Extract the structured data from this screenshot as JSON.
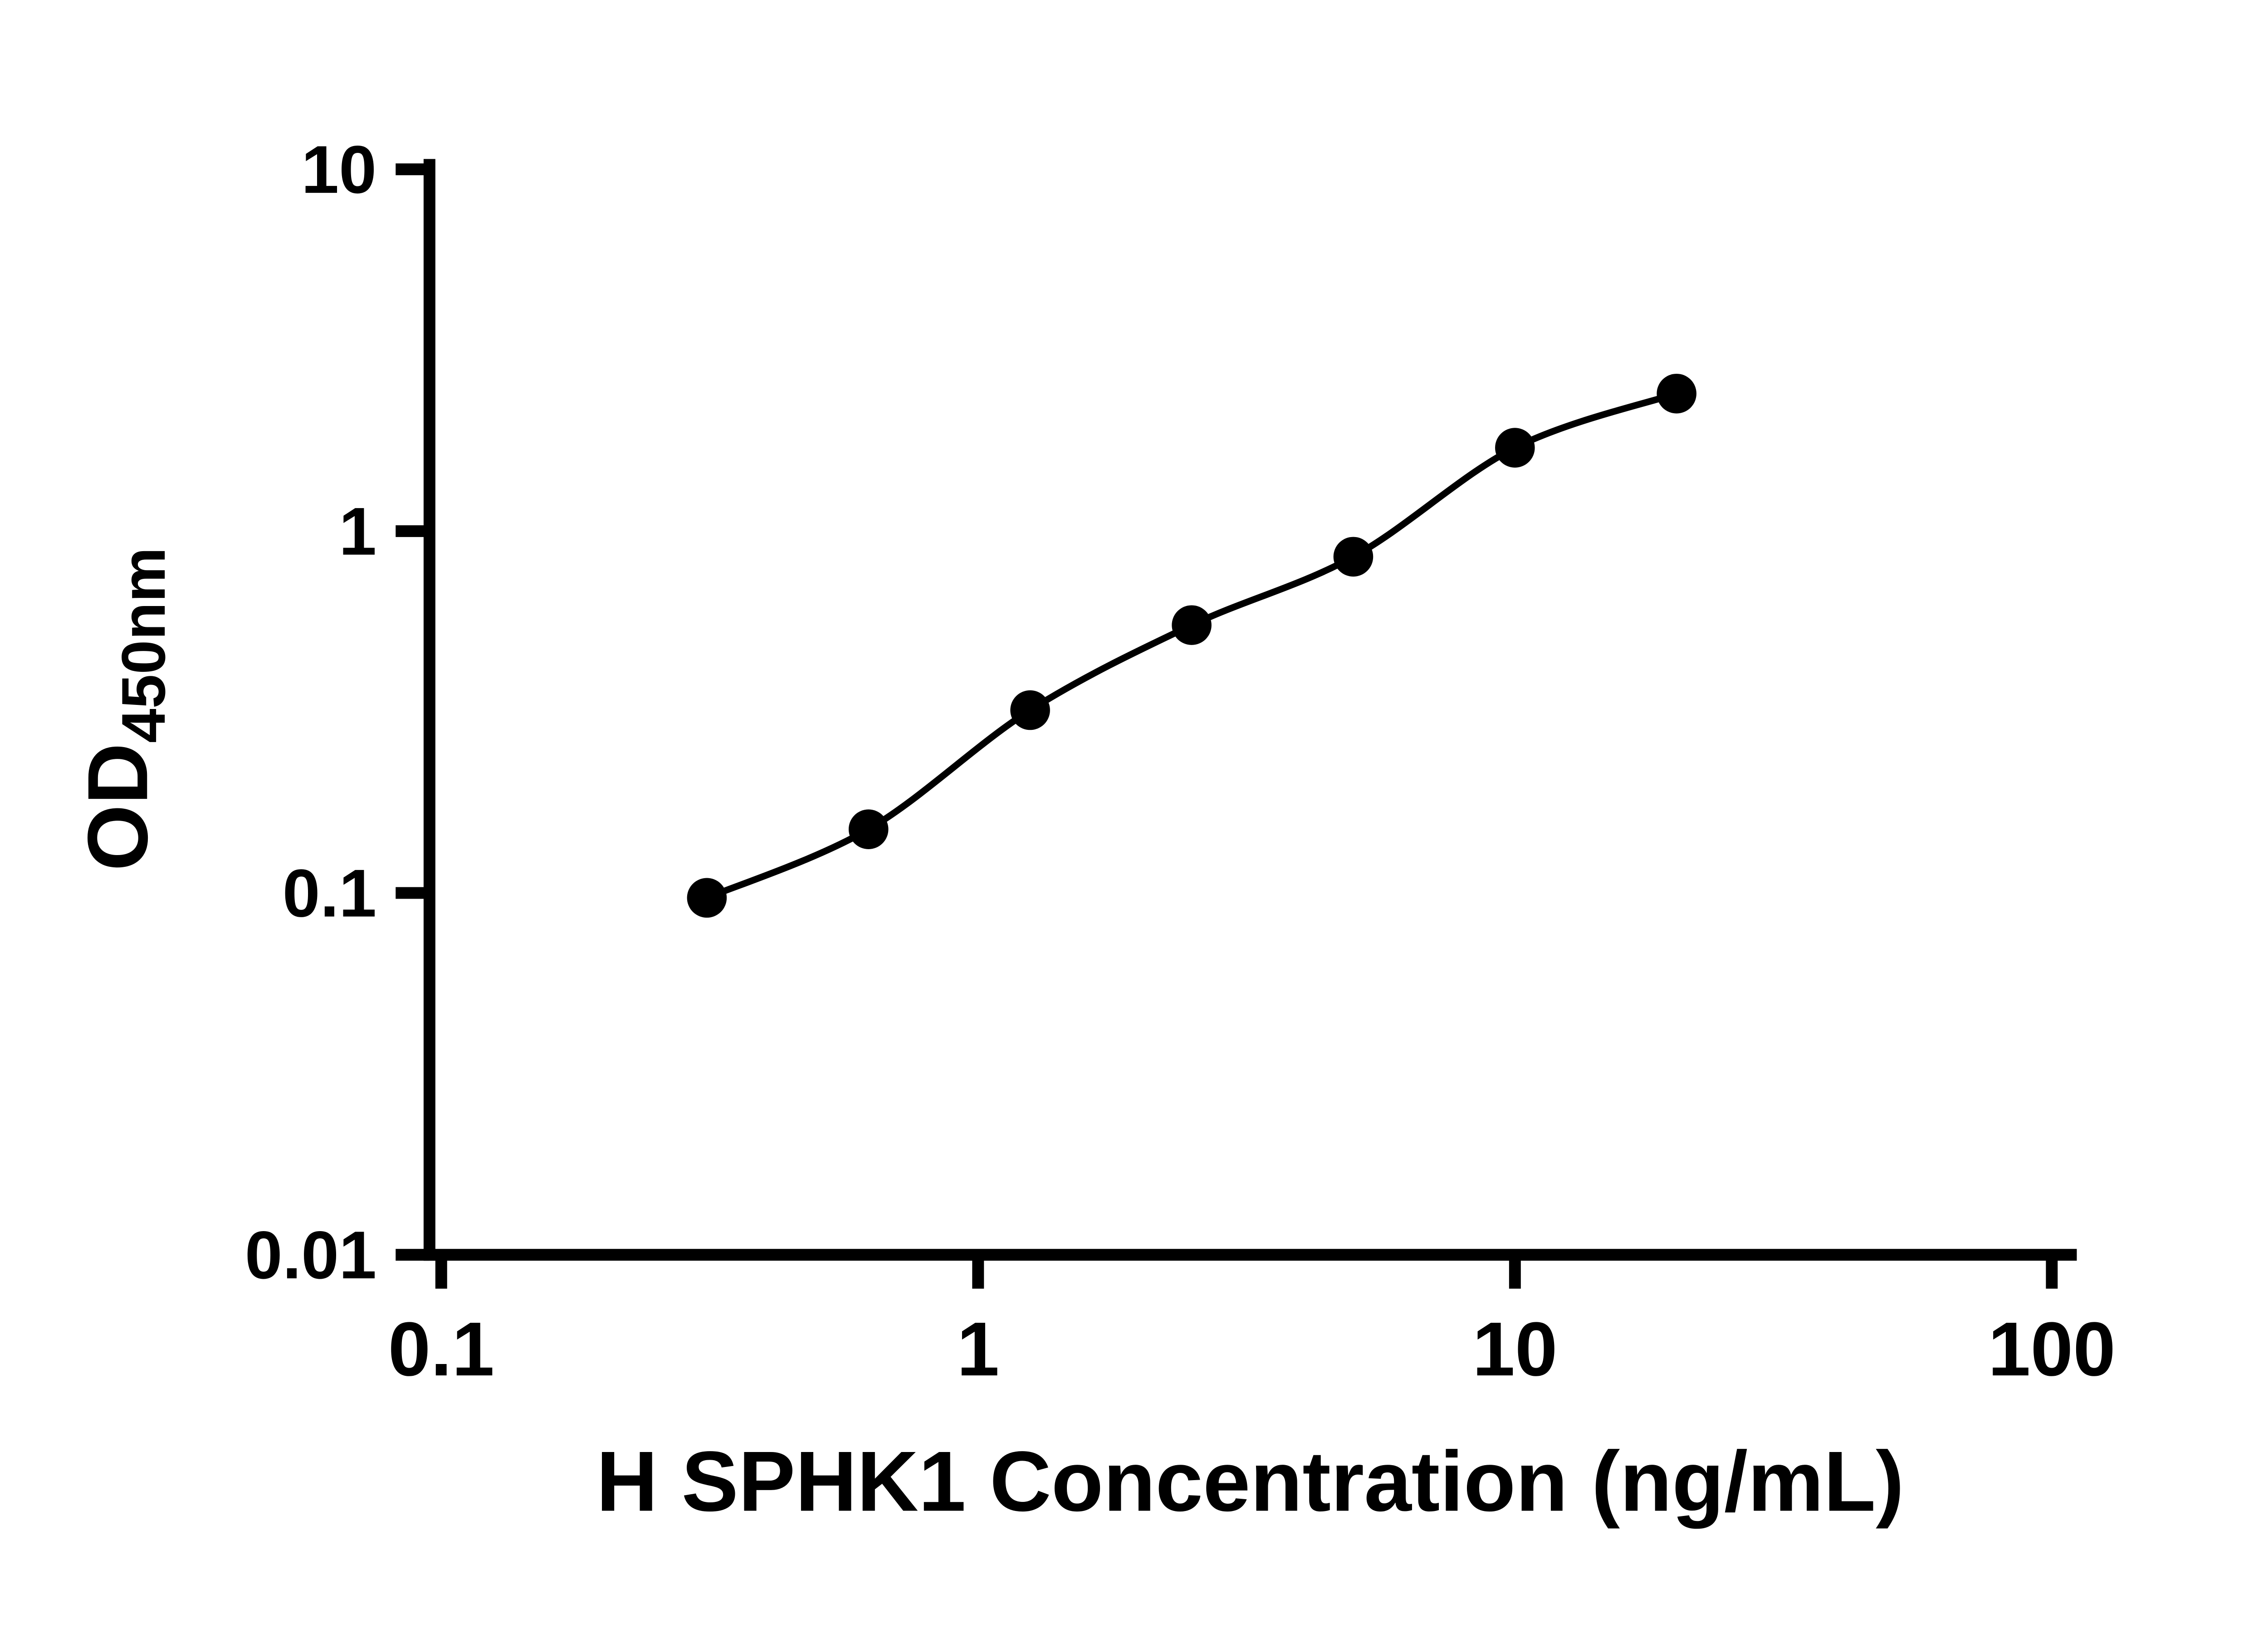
{
  "figure": {
    "background": "#ffffff"
  },
  "colors": {
    "axis": "#000000",
    "tick": "#000000",
    "text": "#000000",
    "curve": "#000000",
    "point": "#000000"
  },
  "chart_data": {
    "type": "scatter",
    "subtype": "standard-curve-with-4PL-fit",
    "title": "",
    "xlabel": "H SPHK1 Concentration (ng/mL)",
    "ylabel_main": "OD",
    "ylabel_sub": "450nm",
    "x_scale": "log",
    "y_scale": "log",
    "xlim": [
      0.1,
      100
    ],
    "ylim": [
      0.01,
      10
    ],
    "x_ticks": [
      0.1,
      1,
      10,
      100
    ],
    "x_tick_labels": [
      "0.1",
      "1",
      "10",
      "100"
    ],
    "y_ticks": [
      0.01,
      0.1,
      1,
      10
    ],
    "y_tick_labels": [
      "0.01",
      "0.1",
      "1",
      "10"
    ],
    "x": [
      0.3125,
      0.625,
      1.25,
      2.5,
      5,
      10,
      20
    ],
    "y": [
      0.097,
      0.15,
      0.32,
      0.55,
      0.85,
      1.7,
      2.4
    ],
    "grid": false,
    "legend": "none",
    "marker": "filled-circle",
    "curve_style": "smooth-fit-line-through-points"
  }
}
